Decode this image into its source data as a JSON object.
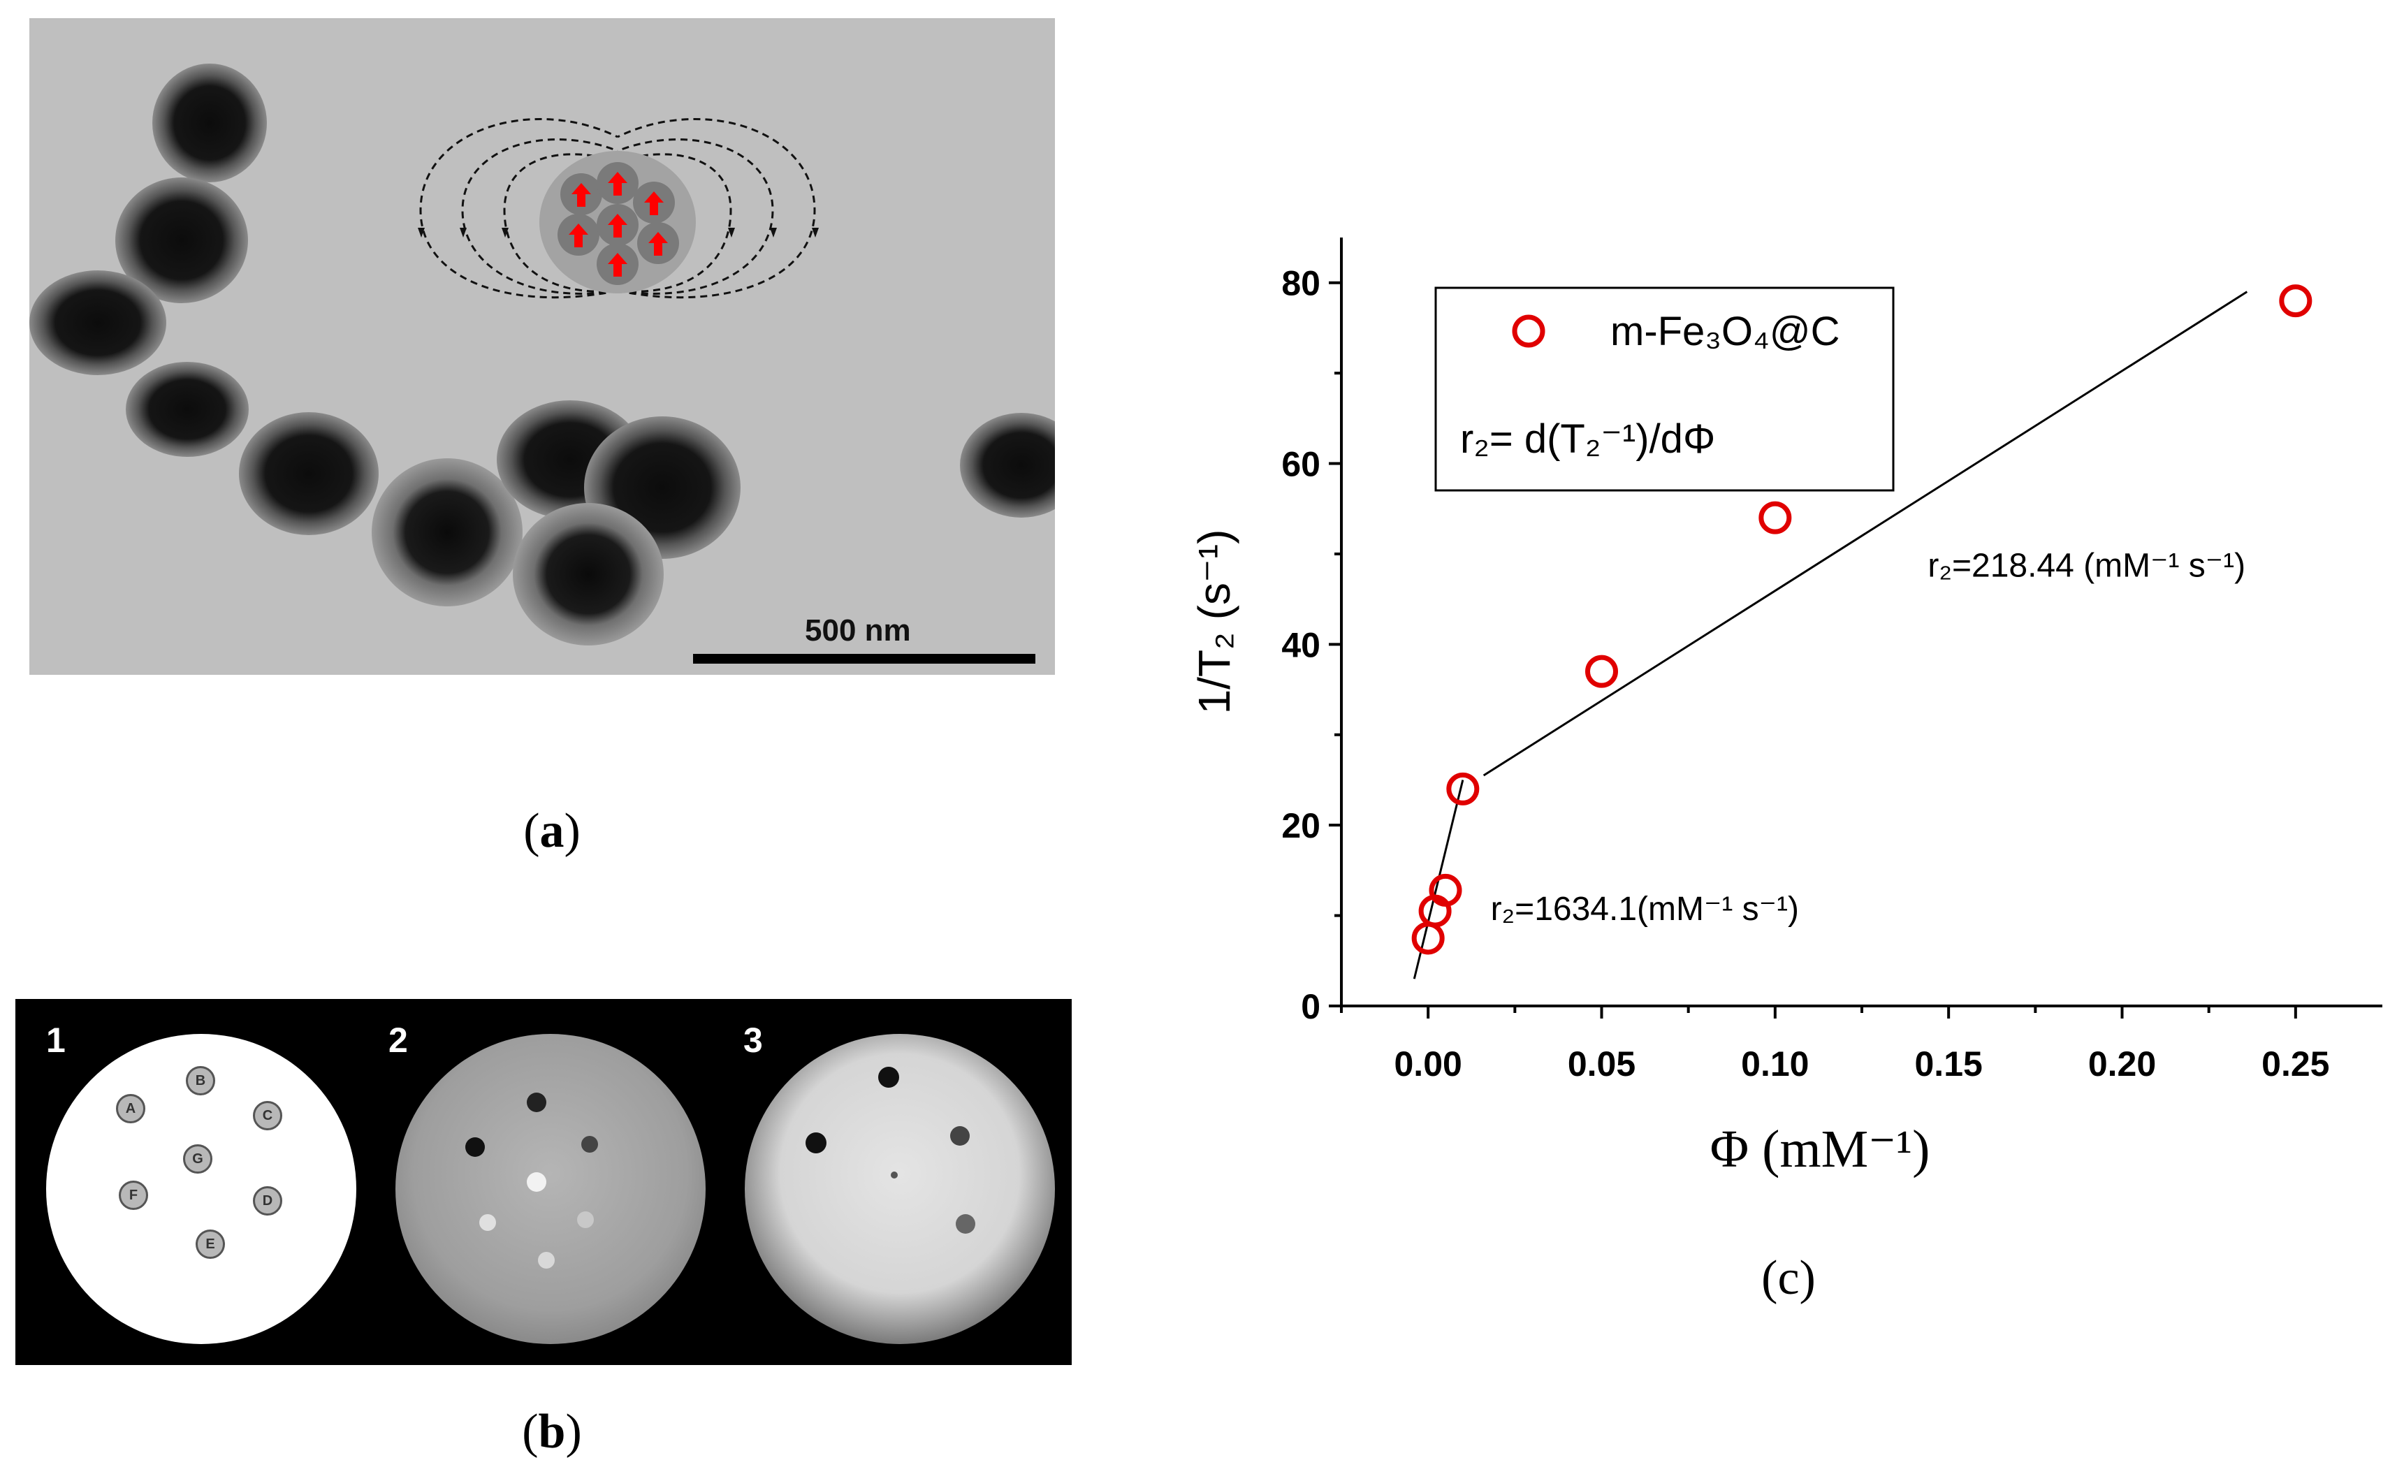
{
  "panel_a": {
    "scale_bar_label": "500 nm",
    "caption_open": "(",
    "caption_letter": "a",
    "caption_close": ")"
  },
  "panel_b": {
    "phantom_labels": [
      "1",
      "2",
      "3"
    ],
    "vial_labels": [
      "A",
      "B",
      "C",
      "D",
      "E",
      "F",
      "G"
    ],
    "caption_open": "(",
    "caption_letter": "b",
    "caption_close": ")"
  },
  "panel_c": {
    "caption": "(c)"
  },
  "chart_data": {
    "type": "scatter",
    "xlabel": "Φ (mM⁻¹)",
    "ylabel": "1/T₂ (s⁻¹)",
    "xlim": [
      -0.025,
      0.275
    ],
    "ylim": [
      0,
      85
    ],
    "xticks": [
      0.0,
      0.05,
      0.1,
      0.15,
      0.2,
      0.25
    ],
    "xtick_labels": [
      "0.00",
      "0.05",
      "0.10",
      "0.15",
      "0.20",
      "0.25"
    ],
    "yticks": [
      0,
      20,
      40,
      60,
      80
    ],
    "ytick_labels": [
      "0",
      "20",
      "40",
      "60",
      "80"
    ],
    "grid": false,
    "legend_position": "top-left",
    "series": [
      {
        "name": "m-Fe₃O₄@C",
        "marker": "open-circle",
        "color": "#e00000",
        "x": [
          0.0,
          0.002,
          0.005,
          0.01,
          0.05,
          0.1,
          0.25
        ],
        "y": [
          7.5,
          10.5,
          12.8,
          24.0,
          37.0,
          54.0,
          78.0
        ]
      }
    ],
    "fit_lines": [
      {
        "x": [
          -0.004,
          0.01
        ],
        "y": [
          3.0,
          25.0
        ],
        "color": "#000000"
      },
      {
        "x": [
          0.016,
          0.236
        ],
        "y": [
          25.5,
          79.0
        ],
        "color": "#000000"
      }
    ],
    "legend_formula": "r₂= d(T₂⁻¹)/dΦ",
    "annotations": [
      {
        "text": "r₂=218.44 (mM⁻¹ s⁻¹)",
        "x": 0.144,
        "y": 47.5
      },
      {
        "text": "r₂=1634.1(mM⁻¹ s⁻¹)",
        "x": 0.018,
        "y": 9.5
      }
    ]
  }
}
